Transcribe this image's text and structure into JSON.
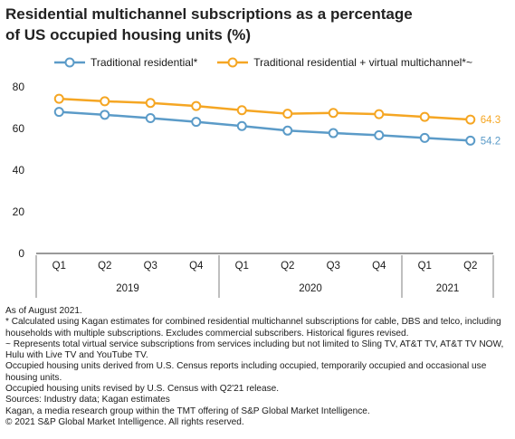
{
  "title": "Residential multichannel subscriptions as a percentage of US occupied housing units (%)",
  "colors": {
    "blue": "#5b9bc8",
    "orange": "#f5a623",
    "axis": "#333333",
    "grid": "#d9d9d9"
  },
  "chart_data": {
    "type": "line",
    "categories": [
      "Q1",
      "Q2",
      "Q3",
      "Q4",
      "Q1",
      "Q2",
      "Q3",
      "Q4",
      "Q1",
      "Q2"
    ],
    "year_groups": [
      {
        "label": "2019",
        "count": 4
      },
      {
        "label": "2020",
        "count": 4
      },
      {
        "label": "2021",
        "count": 2
      }
    ],
    "yticks": [
      0,
      20,
      40,
      60,
      80
    ],
    "ylim": [
      0,
      80
    ],
    "series": [
      {
        "name": "Traditional residential*",
        "color": "#5b9bc8",
        "values": [
          68.0,
          66.6,
          65.0,
          63.2,
          61.2,
          59.0,
          57.8,
          56.8,
          55.5,
          54.2
        ],
        "end_label": "54.2"
      },
      {
        "name": "Traditional residential + virtual multichannel*~",
        "color": "#f5a623",
        "values": [
          74.3,
          73.1,
          72.3,
          70.8,
          68.8,
          67.1,
          67.5,
          66.9,
          65.6,
          64.3
        ],
        "end_label": "64.3"
      }
    ]
  },
  "notes": [
    "As of August 2021.",
    "* Calculated using Kagan estimates for combined residential multichannel subscriptions for cable, DBS and telco, including households with multiple subscriptions. Excludes commercial subscribers. Historical figures revised.",
    "~ Represents total virtual service subscriptions from services including but not limited to Sling TV, AT&T TV, AT&T TV NOW, Hulu with Live TV and YouTube TV.",
    "Occupied housing units derived from U.S. Census reports including occupied, temporarily occupied and occasional use housing units.",
    "Occupied housing units revised by U.S. Census with Q2'21 release.",
    "Sources: Industry data; Kagan estimates",
    "Kagan, a media research group within the TMT offering of S&P Global Market Intelligence.",
    "© 2021 S&P Global Market Intelligence. All rights reserved."
  ]
}
